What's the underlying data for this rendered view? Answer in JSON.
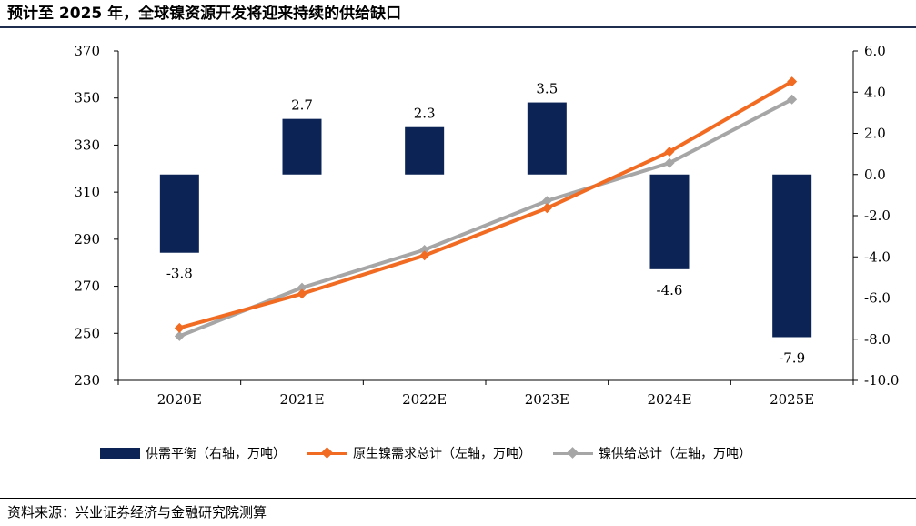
{
  "title": "预计至 2025 年，全球镍资源开发将迎来持续的供给缺口",
  "source": "资料来源：兴业证券经济与金融研究院测算",
  "colors": {
    "bar": "#0c2455",
    "demand": "#f26b22",
    "supply": "#a6a6a6"
  },
  "chart_data": {
    "type": "bar",
    "categories": [
      "2020E",
      "2021E",
      "2022E",
      "2023E",
      "2024E",
      "2025E"
    ],
    "left_axis": {
      "ylim": [
        230,
        370
      ],
      "ticks": [
        "230",
        "250",
        "270",
        "290",
        "310",
        "330",
        "350",
        "370"
      ]
    },
    "right_axis": {
      "ylim": [
        -10,
        6
      ],
      "ticks": [
        "-10.0",
        "-8.0",
        "-6.0",
        "-4.0",
        "-2.0",
        "0.0",
        "2.0",
        "4.0",
        "6.0"
      ]
    },
    "series": [
      {
        "name": "供需平衡（右轴，万吨）",
        "type": "bar",
        "axis": "right",
        "values": [
          -3.8,
          2.7,
          2.3,
          3.5,
          -4.6,
          -7.9
        ],
        "labels": [
          "-3.8",
          "2.7",
          "2.3",
          "3.5",
          "-4.6",
          "-7.9"
        ]
      },
      {
        "name": "原生镍需求总计（左轴，万吨）",
        "type": "line",
        "axis": "left",
        "values": [
          252.3,
          266.8,
          283.1,
          303.2,
          327.2,
          357.0
        ]
      },
      {
        "name": "镍供给总计（左轴，万吨）",
        "type": "line",
        "axis": "left",
        "values": [
          248.8,
          269.4,
          285.5,
          306.3,
          322.4,
          349.4
        ]
      }
    ],
    "legend": "bottom",
    "grid": false
  }
}
